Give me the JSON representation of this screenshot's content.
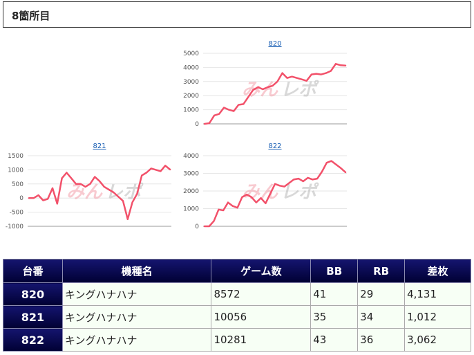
{
  "header": {
    "title": "8箇所目"
  },
  "watermark": {
    "text_a": "みん",
    "text_b": "レポ"
  },
  "charts": [
    {
      "id": "820",
      "label": "820",
      "y_ticks": [
        "5000",
        "4000",
        "3000",
        "2000",
        "1000",
        "0"
      ]
    },
    {
      "id": "821",
      "label": "821",
      "y_ticks": [
        "1500",
        "1000",
        "500",
        "0",
        "-500",
        "-1000"
      ]
    },
    {
      "id": "822",
      "label": "822",
      "y_ticks": [
        "4000",
        "3000",
        "2000",
        "1000",
        "0"
      ]
    }
  ],
  "chart_data": [
    {
      "type": "line",
      "title": "820",
      "ylim": [
        0,
        5000
      ],
      "grid": true,
      "series": [
        {
          "values": [
            0,
            50,
            600,
            700,
            1150,
            1000,
            900,
            1350,
            1400,
            1900,
            2400,
            2600,
            2450,
            2600,
            2700,
            3000,
            3600,
            3250,
            3350,
            3250,
            3150,
            3050,
            3500,
            3550,
            3500,
            3600,
            3750,
            4250,
            4150,
            4131
          ]
        }
      ]
    },
    {
      "type": "line",
      "title": "821",
      "ylim": [
        -1000,
        1500
      ],
      "grid": true,
      "series": [
        {
          "values": [
            0,
            0,
            100,
            -80,
            -30,
            350,
            -200,
            700,
            900,
            700,
            500,
            500,
            400,
            500,
            750,
            600,
            400,
            300,
            200,
            50,
            -100,
            -750,
            -150,
            150,
            800,
            900,
            1050,
            1000,
            950,
            1150,
            1012
          ]
        }
      ]
    },
    {
      "type": "line",
      "title": "822",
      "ylim": [
        0,
        4000
      ],
      "grid": true,
      "series": [
        {
          "values": [
            0,
            0,
            300,
            950,
            900,
            1350,
            1150,
            1050,
            1650,
            1800,
            1650,
            1350,
            1600,
            1300,
            1850,
            2400,
            2300,
            2250,
            2450,
            2650,
            2700,
            2550,
            2750,
            2650,
            2700,
            3100,
            3600,
            3700,
            3500,
            3300,
            3062
          ]
        }
      ]
    }
  ],
  "table": {
    "headers": [
      "台番",
      "機種名",
      "ゲーム数",
      "BB",
      "RB",
      "差枚"
    ],
    "rows": [
      {
        "num": "820",
        "name": "キングハナハナ",
        "games": "8572",
        "bb": "41",
        "rb": "29",
        "diff": "4,131"
      },
      {
        "num": "821",
        "name": "キングハナハナ",
        "games": "10056",
        "bb": "35",
        "rb": "34",
        "diff": "1,012"
      },
      {
        "num": "822",
        "name": "キングハナハナ",
        "games": "10281",
        "bb": "43",
        "rb": "36",
        "diff": "3,062"
      }
    ]
  }
}
